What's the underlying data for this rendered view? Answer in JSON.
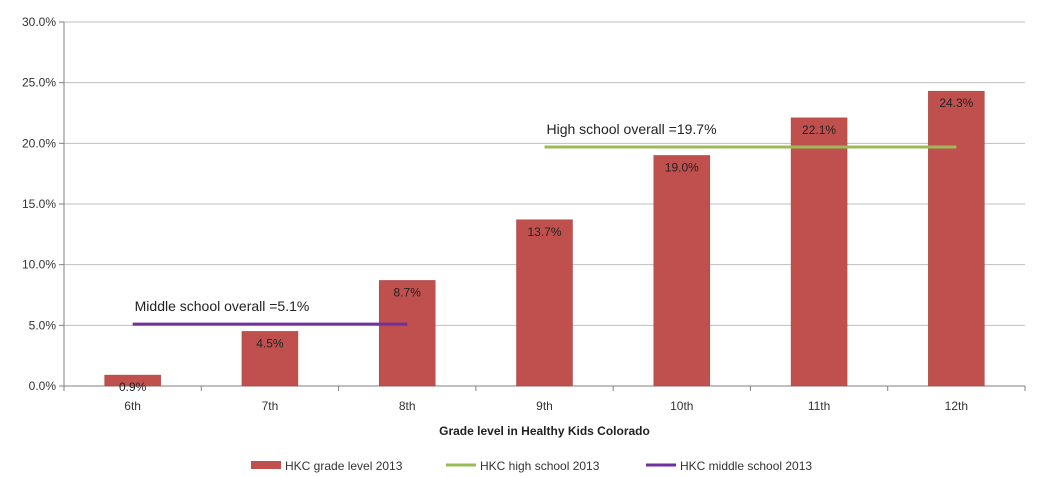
{
  "chart_data": {
    "type": "bar",
    "categories": [
      "6th",
      "7th",
      "8th",
      "9th",
      "10th",
      "11th",
      "12th"
    ],
    "series": [
      {
        "name": "HKC grade level 2013",
        "values": [
          0.9,
          4.5,
          8.7,
          13.7,
          19.0,
          22.1,
          24.3
        ],
        "labels": [
          "0.9%",
          "4.5%",
          "8.7%",
          "13.7%",
          "19.0%",
          "22.1%",
          "24.3%"
        ],
        "color": "#c0504d"
      }
    ],
    "reference_lines": [
      {
        "name": "HKC high school 2013",
        "value": 19.7,
        "from_category": "9th",
        "to_category": "12th",
        "label": "High school overall =19.7%",
        "color": "#9bbb59"
      },
      {
        "name": "HKC middle school 2013",
        "value": 5.1,
        "from_category": "6th",
        "to_category": "8th",
        "label": "Middle school overall =5.1%",
        "color": "#7030a0"
      }
    ],
    "xlabel": "Grade level in Healthy Kids Colorado",
    "ylabel": "",
    "ylim": [
      0,
      30
    ],
    "yticks": [
      0,
      5,
      10,
      15,
      20,
      25,
      30
    ],
    "ytick_labels": [
      "0.0%",
      "5.0%",
      "10.0%",
      "15.0%",
      "20.0%",
      "25.0%",
      "30.0%"
    ],
    "grid": true,
    "legend_position": "bottom"
  }
}
